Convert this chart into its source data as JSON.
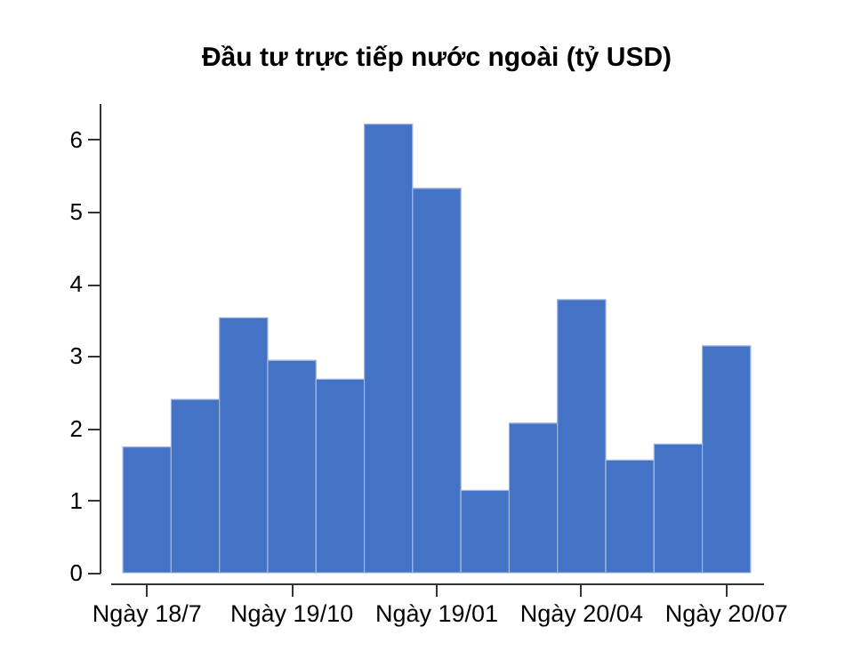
{
  "chart_data": {
    "type": "bar",
    "title": "Đầu tư trực tiếp nước ngoài (tỷ USD)",
    "categories": [
      "Ngày 18/7",
      null,
      null,
      "Ngày 19/10",
      null,
      null,
      "Ngày 19/01",
      null,
      null,
      "Ngày 20/04",
      null,
      null,
      "Ngày 20/07"
    ],
    "values": [
      1.74,
      2.4,
      3.53,
      2.94,
      2.68,
      6.21,
      5.32,
      1.14,
      2.07,
      3.78,
      1.56,
      1.78,
      3.14
    ],
    "color": "#4472c4",
    "ylim": [
      0,
      6.5
    ],
    "yticks": [
      0,
      1,
      2,
      3,
      4,
      5,
      6
    ],
    "grid": false
  }
}
